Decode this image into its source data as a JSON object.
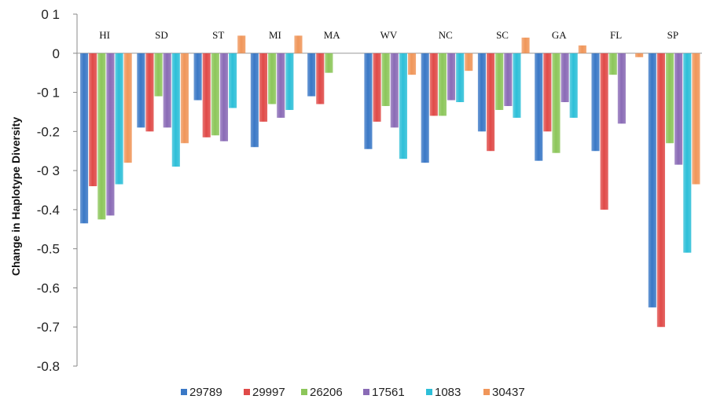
{
  "chart_data": {
    "type": "bar",
    "title": "",
    "xlabel": "",
    "ylabel": "Change in Haplotype Diversity",
    "ylim": [
      -0.8,
      0.1
    ],
    "y_ticks": [
      {
        "value": 0.1,
        "label": "0 1"
      },
      {
        "value": 0.0,
        "label": "0"
      },
      {
        "value": -0.1,
        "label": "-0 1"
      },
      {
        "value": -0.2,
        "label": "-0.2"
      },
      {
        "value": -0.3,
        "label": "-0 3"
      },
      {
        "value": -0.4,
        "label": "-0.4"
      },
      {
        "value": -0.5,
        "label": "-0.5"
      },
      {
        "value": -0.6,
        "label": "-0.6"
      },
      {
        "value": -0.7,
        "label": "-0.7"
      },
      {
        "value": -0.8,
        "label": "-0.8"
      }
    ],
    "grid": false,
    "legend_position": "bottom",
    "categories": [
      "HI",
      "SD",
      "ST",
      "MI",
      "MA",
      "WV",
      "NC",
      "SC",
      "GA",
      "FL",
      "SP"
    ],
    "series": [
      {
        "name": "29789",
        "color": "#3a78c6",
        "values": [
          -0.435,
          -0.19,
          -0.12,
          -0.24,
          -0.11,
          -0.245,
          -0.28,
          -0.2,
          -0.275,
          -0.25,
          -0.65
        ]
      },
      {
        "name": "29997",
        "color": "#e04a48",
        "values": [
          -0.34,
          -0.2,
          -0.215,
          -0.175,
          -0.13,
          -0.175,
          -0.16,
          -0.25,
          -0.2,
          -0.4,
          -0.7
        ]
      },
      {
        "name": "26206",
        "color": "#8cc65a",
        "values": [
          -0.425,
          -0.11,
          -0.21,
          -0.13,
          -0.05,
          -0.135,
          -0.16,
          -0.145,
          -0.255,
          -0.055,
          -0.23
        ]
      },
      {
        "name": "17561",
        "color": "#8a6bb6",
        "values": [
          -0.415,
          -0.19,
          -0.225,
          -0.165,
          null,
          -0.19,
          -0.12,
          -0.135,
          -0.125,
          -0.18,
          -0.285
        ]
      },
      {
        "name": "1083",
        "color": "#2dbfd8",
        "values": [
          -0.335,
          -0.29,
          -0.14,
          -0.145,
          null,
          -0.27,
          -0.125,
          -0.165,
          -0.165,
          null,
          -0.51
        ]
      },
      {
        "name": "30437",
        "color": "#f0965a",
        "values": [
          -0.28,
          -0.23,
          0.045,
          0.045,
          null,
          -0.055,
          -0.045,
          0.04,
          0.02,
          -0.01,
          -0.335
        ]
      }
    ]
  }
}
